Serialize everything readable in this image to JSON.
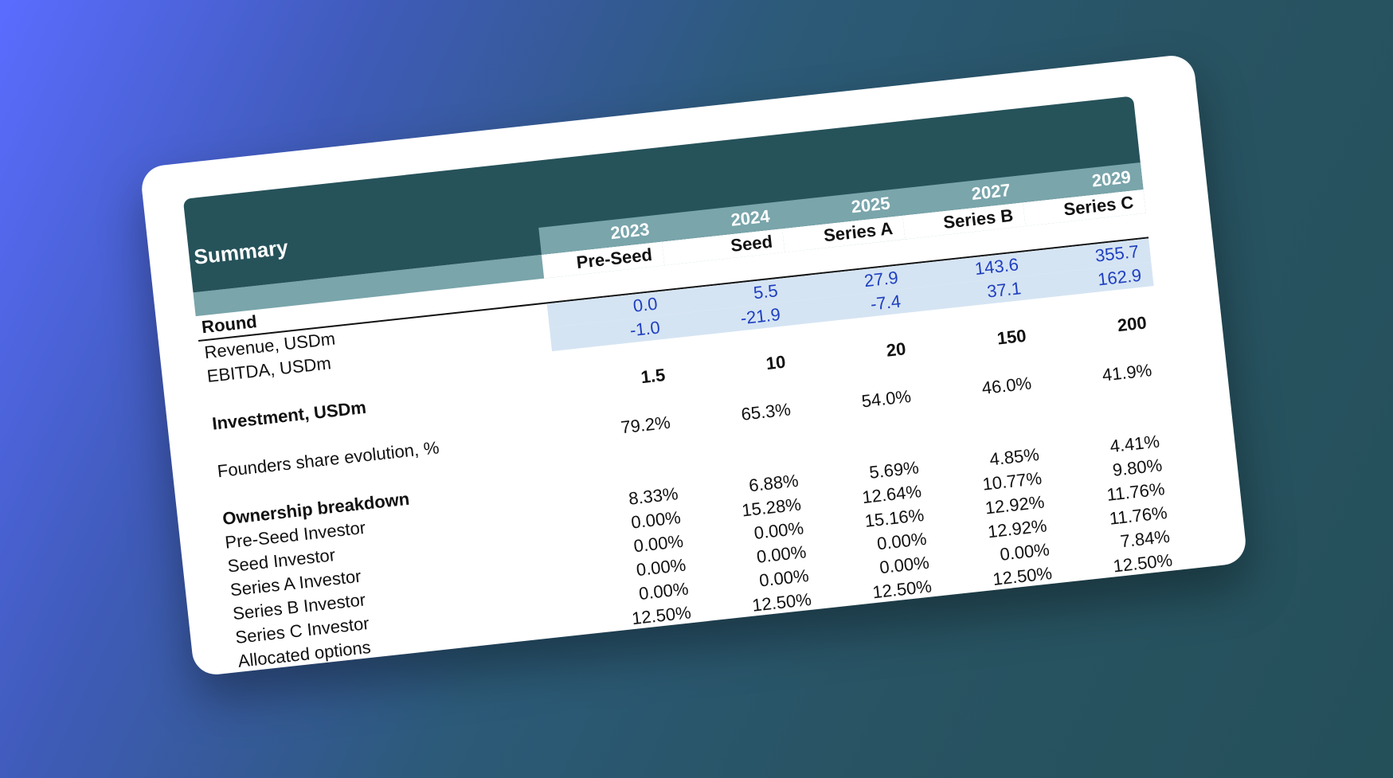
{
  "sheet": {
    "title": "Summary",
    "years": [
      "2023",
      "2024",
      "2025",
      "2027",
      "2029"
    ],
    "rounds": [
      "Pre-Seed",
      "Seed",
      "Series A",
      "Series B",
      "Series C"
    ],
    "round_label": "Round",
    "revenue": {
      "label": "Revenue, USDm",
      "values": [
        "0.0",
        "5.5",
        "27.9",
        "143.6",
        "355.7"
      ]
    },
    "ebitda": {
      "label": "EBITDA, USDm",
      "values": [
        "-1.0",
        "-21.9",
        "-7.4",
        "37.1",
        "162.9"
      ]
    },
    "investment": {
      "label": "Investment, USDm",
      "values": [
        "1.5",
        "10",
        "20",
        "150",
        "200"
      ]
    },
    "founders": {
      "label": "Founders share evolution, %",
      "values": [
        "79.2%",
        "65.3%",
        "54.0%",
        "46.0%",
        "41.9%"
      ]
    },
    "ownership_label": "Ownership breakdown",
    "ownership": [
      {
        "label": "Pre-Seed Investor",
        "values": [
          "8.33%",
          "6.88%",
          "5.69%",
          "4.85%",
          "4.41%"
        ]
      },
      {
        "label": "Seed Investor",
        "values": [
          "0.00%",
          "15.28%",
          "12.64%",
          "10.77%",
          "9.80%"
        ]
      },
      {
        "label": "Series A Investor",
        "values": [
          "0.00%",
          "0.00%",
          "15.16%",
          "12.92%",
          "11.76%"
        ]
      },
      {
        "label": "Series B Investor",
        "values": [
          "0.00%",
          "0.00%",
          "0.00%",
          "12.92%",
          "11.76%"
        ]
      },
      {
        "label": "Series C Investor",
        "values": [
          "0.00%",
          "0.00%",
          "0.00%",
          "0.00%",
          "7.84%"
        ]
      },
      {
        "label": "Allocated options",
        "values": [
          "12.50%",
          "12.50%",
          "12.50%",
          "12.50%",
          "12.50%"
        ]
      }
    ]
  },
  "colors": {
    "header": "#26525a",
    "subheader": "#79a5ab",
    "input_bg": "#d5e4f3",
    "input_text": "#1f3fbf"
  }
}
